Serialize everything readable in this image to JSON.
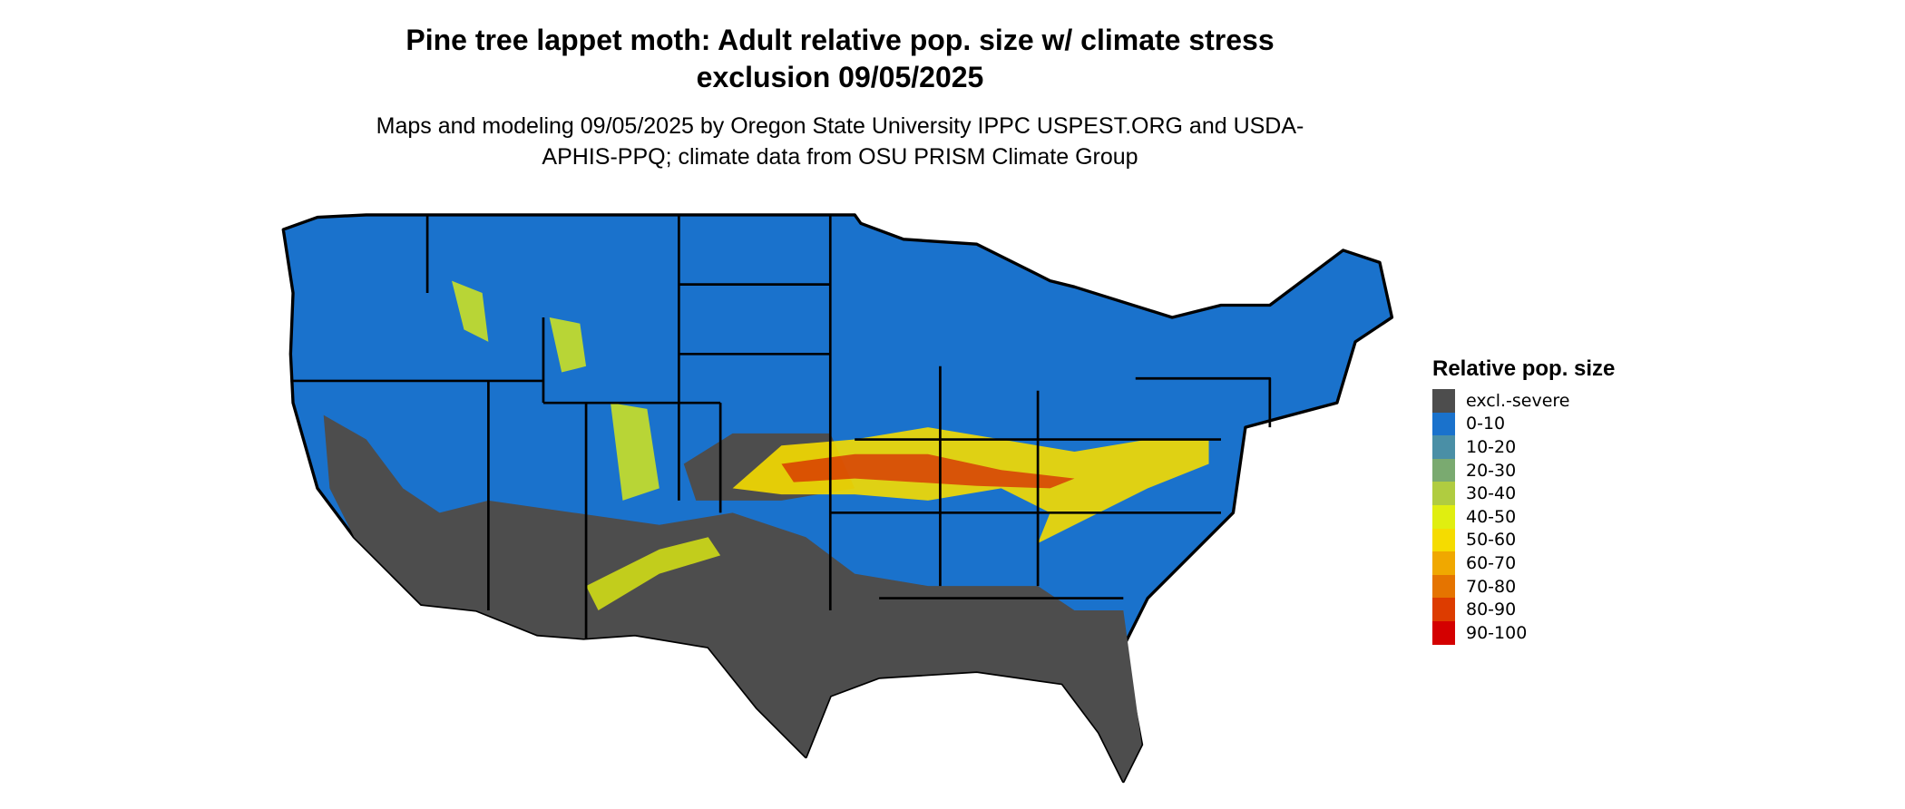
{
  "header": {
    "title": "Pine tree lappet moth: Adult relative pop. size w/ climate stress exclusion 09/05/2025",
    "subtitle": "Maps and modeling 09/05/2025 by Oregon State University IPPC USPEST.ORG and USDA-APHIS-PPQ; climate data from OSU PRISM Climate Group"
  },
  "legend": {
    "title": "Relative pop. size",
    "items": [
      {
        "label": "excl.-severe",
        "color": "#4d4d4d"
      },
      {
        "label": "0-10",
        "color": "#1a72cc"
      },
      {
        "label": "10-20",
        "color": "#4a8fa6"
      },
      {
        "label": "20-30",
        "color": "#7aaa70"
      },
      {
        "label": "30-40",
        "color": "#b0cc40"
      },
      {
        "label": "40-50",
        "color": "#e0ee10"
      },
      {
        "label": "50-60",
        "color": "#f5dc00"
      },
      {
        "label": "60-70",
        "color": "#f0a800"
      },
      {
        "label": "70-80",
        "color": "#e57400"
      },
      {
        "label": "80-90",
        "color": "#dd3c00"
      },
      {
        "label": "90-100",
        "color": "#d40000"
      }
    ]
  }
}
